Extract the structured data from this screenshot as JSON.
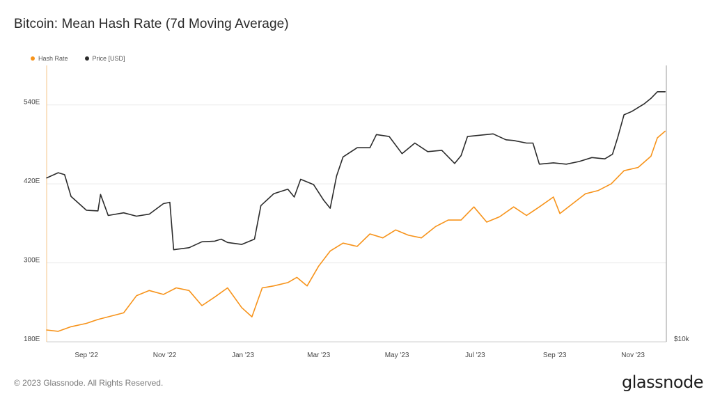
{
  "footer": {
    "copyright": "© 2023 Glassnode. All Rights Reserved."
  },
  "logo": {
    "text": "glassnode"
  },
  "chart_data": {
    "type": "line",
    "title": "Bitcoin: Mean Hash Rate (7d Moving Average)",
    "legend_placement": "top-left",
    "grid": {
      "horizontal": true,
      "vertical": false
    },
    "x_ticks": [
      "Sep '22",
      "Nov '22",
      "Jan '23",
      "Mar '23",
      "May '23",
      "Jul '23",
      "Sep '23",
      "Nov '23"
    ],
    "x_tick_dates": [
      "2022-09-01",
      "2022-11-01",
      "2023-01-01",
      "2023-03-01",
      "2023-05-01",
      "2023-07-01",
      "2023-09-01",
      "2023-11-01"
    ],
    "xlim": [
      "2022-08-01",
      "2023-11-27"
    ],
    "y_left": {
      "ticks": [
        "180E",
        "300E",
        "420E",
        "540E"
      ],
      "values": [
        180,
        300,
        420,
        540
      ],
      "ylim": [
        180,
        600
      ]
    },
    "y_right": {
      "ticks": [
        "$10k"
      ]
    },
    "series": [
      {
        "name": "Hash Rate",
        "color": "#f7931a",
        "axis": "left",
        "points": [
          [
            "2022-08-01",
            198
          ],
          [
            "2022-08-10",
            196
          ],
          [
            "2022-08-20",
            203
          ],
          [
            "2022-09-01",
            208
          ],
          [
            "2022-09-10",
            214
          ],
          [
            "2022-09-20",
            219
          ],
          [
            "2022-09-30",
            224
          ],
          [
            "2022-10-10",
            250
          ],
          [
            "2022-10-20",
            258
          ],
          [
            "2022-10-31",
            252
          ],
          [
            "2022-11-10",
            262
          ],
          [
            "2022-11-20",
            258
          ],
          [
            "2022-11-30",
            235
          ],
          [
            "2022-12-10",
            248
          ],
          [
            "2022-12-20",
            262
          ],
          [
            "2022-12-31",
            232
          ],
          [
            "2023-01-08",
            218
          ],
          [
            "2023-01-16",
            262
          ],
          [
            "2023-01-25",
            265
          ],
          [
            "2023-02-05",
            270
          ],
          [
            "2023-02-12",
            278
          ],
          [
            "2023-02-20",
            265
          ],
          [
            "2023-03-01",
            295
          ],
          [
            "2023-03-10",
            318
          ],
          [
            "2023-03-20",
            330
          ],
          [
            "2023-03-31",
            325
          ],
          [
            "2023-04-10",
            344
          ],
          [
            "2023-04-20",
            338
          ],
          [
            "2023-04-30",
            350
          ],
          [
            "2023-05-10",
            342
          ],
          [
            "2023-05-20",
            338
          ],
          [
            "2023-05-31",
            355
          ],
          [
            "2023-06-10",
            365
          ],
          [
            "2023-06-20",
            365
          ],
          [
            "2023-06-30",
            385
          ],
          [
            "2023-07-10",
            362
          ],
          [
            "2023-07-20",
            370
          ],
          [
            "2023-07-31",
            385
          ],
          [
            "2023-08-10",
            372
          ],
          [
            "2023-08-20",
            385
          ],
          [
            "2023-08-31",
            400
          ],
          [
            "2023-09-05",
            375
          ],
          [
            "2023-09-15",
            390
          ],
          [
            "2023-09-25",
            405
          ],
          [
            "2023-10-05",
            410
          ],
          [
            "2023-10-15",
            420
          ],
          [
            "2023-10-25",
            440
          ],
          [
            "2023-11-05",
            445
          ],
          [
            "2023-11-15",
            462
          ],
          [
            "2023-11-20",
            490
          ],
          [
            "2023-11-26",
            500
          ]
        ]
      },
      {
        "name": "Price [USD]",
        "color": "#2b2b2b",
        "axis": "right",
        "points": [
          [
            "2022-08-01",
            429
          ],
          [
            "2022-08-10",
            437
          ],
          [
            "2022-08-15",
            434
          ],
          [
            "2022-08-20",
            401
          ],
          [
            "2022-09-01",
            380
          ],
          [
            "2022-09-10",
            379
          ],
          [
            "2022-09-12",
            404
          ],
          [
            "2022-09-18",
            372
          ],
          [
            "2022-09-30",
            376
          ],
          [
            "2022-10-10",
            371
          ],
          [
            "2022-10-20",
            374
          ],
          [
            "2022-10-31",
            390
          ],
          [
            "2022-11-05",
            392
          ],
          [
            "2022-11-08",
            320
          ],
          [
            "2022-11-20",
            323
          ],
          [
            "2022-11-30",
            332
          ],
          [
            "2022-12-10",
            333
          ],
          [
            "2022-12-15",
            336
          ],
          [
            "2022-12-20",
            331
          ],
          [
            "2022-12-31",
            328
          ],
          [
            "2023-01-10",
            336
          ],
          [
            "2023-01-15",
            387
          ],
          [
            "2023-01-25",
            405
          ],
          [
            "2023-02-05",
            412
          ],
          [
            "2023-02-10",
            400
          ],
          [
            "2023-02-15",
            427
          ],
          [
            "2023-02-25",
            419
          ],
          [
            "2023-03-05",
            395
          ],
          [
            "2023-03-10",
            383
          ],
          [
            "2023-03-15",
            432
          ],
          [
            "2023-03-20",
            461
          ],
          [
            "2023-03-31",
            475
          ],
          [
            "2023-04-10",
            475
          ],
          [
            "2023-04-15",
            495
          ],
          [
            "2023-04-25",
            492
          ],
          [
            "2023-05-05",
            466
          ],
          [
            "2023-05-15",
            482
          ],
          [
            "2023-05-25",
            469
          ],
          [
            "2023-06-05",
            471
          ],
          [
            "2023-06-15",
            451
          ],
          [
            "2023-06-20",
            463
          ],
          [
            "2023-06-25",
            492
          ],
          [
            "2023-07-05",
            494
          ],
          [
            "2023-07-15",
            496
          ],
          [
            "2023-07-25",
            487
          ],
          [
            "2023-07-31",
            486
          ],
          [
            "2023-08-10",
            482
          ],
          [
            "2023-08-15",
            482
          ],
          [
            "2023-08-20",
            450
          ],
          [
            "2023-08-31",
            452
          ],
          [
            "2023-09-10",
            450
          ],
          [
            "2023-09-20",
            454
          ],
          [
            "2023-09-30",
            460
          ],
          [
            "2023-10-10",
            458
          ],
          [
            "2023-10-16",
            465
          ],
          [
            "2023-10-20",
            490
          ],
          [
            "2023-10-25",
            525
          ],
          [
            "2023-10-31",
            530
          ],
          [
            "2023-11-10",
            542
          ],
          [
            "2023-11-15",
            550
          ],
          [
            "2023-11-20",
            560
          ],
          [
            "2023-11-26",
            560
          ]
        ]
      }
    ]
  }
}
